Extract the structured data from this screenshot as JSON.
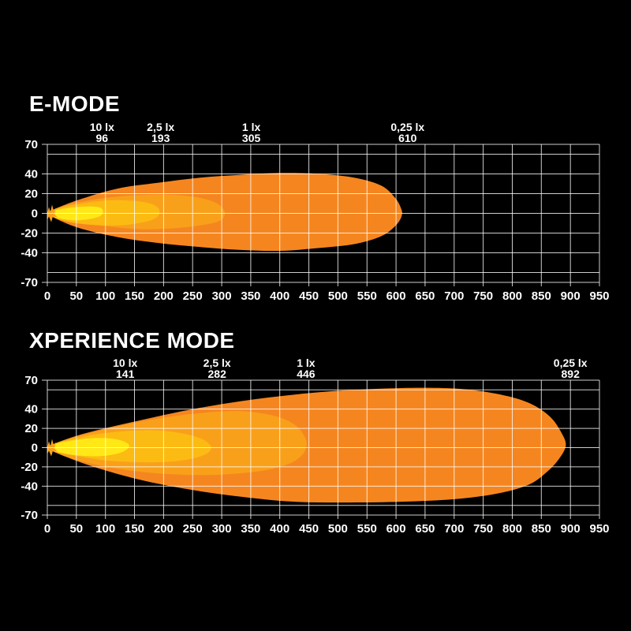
{
  "page": {
    "background": "#000000",
    "text_color": "#ffffff",
    "grid_color_rgba": "rgba(255,255,255,0.8)"
  },
  "chart_data": [
    {
      "type": "area",
      "title": "E-MODE",
      "xlabel": "",
      "ylabel": "",
      "xlim": [
        0,
        950
      ],
      "ylim": [
        -70,
        70
      ],
      "grid": true,
      "xticks": [
        0,
        50,
        100,
        150,
        200,
        250,
        300,
        350,
        400,
        450,
        500,
        550,
        600,
        650,
        700,
        750,
        800,
        850,
        900,
        950
      ],
      "ytick_labels": [
        70,
        40,
        20,
        0,
        -20,
        -40,
        -70
      ],
      "ygrid": [
        70,
        60,
        40,
        20,
        0,
        -20,
        -40,
        -60,
        -70
      ],
      "annotations": [
        {
          "lux": "10 lx",
          "distance": "96",
          "x": 94
        },
        {
          "lux": "2,5 lx",
          "distance": "193",
          "x": 195
        },
        {
          "lux": "1 lx",
          "distance": "305",
          "x": 351
        },
        {
          "lux": "0,25 lx",
          "distance": "610",
          "x": 620
        }
      ],
      "series": [
        {
          "name": "0,25 lx isolux contour",
          "reach": 610,
          "color": "#F5861F",
          "outline": [
            [
              0,
              1
            ],
            [
              50,
              13
            ],
            [
              120,
              25
            ],
            [
              190,
              31
            ],
            [
              260,
              36
            ],
            [
              330,
              39
            ],
            [
              400,
              41
            ],
            [
              470,
              40
            ],
            [
              530,
              36
            ],
            [
              575,
              28
            ],
            [
              598,
              16
            ],
            [
              608,
              6
            ],
            [
              610,
              -2
            ],
            [
              600,
              -12
            ],
            [
              575,
              -23
            ],
            [
              530,
              -31
            ],
            [
              470,
              -35
            ],
            [
              400,
              -38
            ],
            [
              330,
              -37
            ],
            [
              260,
              -34
            ],
            [
              190,
              -30
            ],
            [
              120,
              -24
            ],
            [
              50,
              -14
            ],
            [
              0,
              -1
            ]
          ]
        },
        {
          "name": "1 lx isolux contour",
          "reach": 305,
          "color": "#F9A01B",
          "outline": [
            [
              0,
              1
            ],
            [
              30,
              8
            ],
            [
              80,
              14
            ],
            [
              140,
              18
            ],
            [
              200,
              19
            ],
            [
              250,
              17
            ],
            [
              285,
              12
            ],
            [
              302,
              5
            ],
            [
              305,
              -2
            ],
            [
              295,
              -8
            ],
            [
              265,
              -12
            ],
            [
              220,
              -15
            ],
            [
              160,
              -16
            ],
            [
              100,
              -13
            ],
            [
              45,
              -9
            ],
            [
              0,
              -1
            ]
          ]
        },
        {
          "name": "2,5 lx isolux contour",
          "reach": 193,
          "color": "#FCBB12",
          "outline": [
            [
              0,
              1
            ],
            [
              25,
              6
            ],
            [
              60,
              10
            ],
            [
              100,
              13
            ],
            [
              140,
              13
            ],
            [
              170,
              11
            ],
            [
              188,
              7
            ],
            [
              193,
              1
            ],
            [
              186,
              -5
            ],
            [
              165,
              -9
            ],
            [
              130,
              -12
            ],
            [
              90,
              -12
            ],
            [
              50,
              -10
            ],
            [
              20,
              -6
            ],
            [
              0,
              -1
            ]
          ]
        },
        {
          "name": "10 lx isolux contour",
          "reach": 96,
          "color": "#FFE816",
          "outline": [
            [
              0,
              1
            ],
            [
              20,
              4
            ],
            [
              45,
              6
            ],
            [
              70,
              7
            ],
            [
              90,
              6
            ],
            [
              96,
              2
            ],
            [
              90,
              -3
            ],
            [
              70,
              -6
            ],
            [
              45,
              -7
            ],
            [
              20,
              -5
            ],
            [
              0,
              -1
            ]
          ]
        }
      ]
    },
    {
      "type": "area",
      "title": "XPERIENCE MODE",
      "xlabel": "",
      "ylabel": "",
      "xlim": [
        0,
        950
      ],
      "ylim": [
        -70,
        70
      ],
      "grid": true,
      "xticks": [
        0,
        50,
        100,
        150,
        200,
        250,
        300,
        350,
        400,
        450,
        500,
        550,
        600,
        650,
        700,
        750,
        800,
        850,
        900,
        950
      ],
      "ytick_labels": [
        70,
        40,
        20,
        0,
        -20,
        -40,
        -70
      ],
      "ygrid": [
        70,
        60,
        40,
        20,
        0,
        -20,
        -40,
        -60,
        -70
      ],
      "annotations": [
        {
          "lux": "10 lx",
          "distance": "141",
          "x": 134
        },
        {
          "lux": "2,5 lx",
          "distance": "282",
          "x": 292
        },
        {
          "lux": "1 lx",
          "distance": "446",
          "x": 445
        },
        {
          "lux": "0,25 lx",
          "distance": "892",
          "x": 900
        }
      ],
      "series": [
        {
          "name": "0,25 lx isolux contour",
          "reach": 892,
          "color": "#F5861F",
          "outline": [
            [
              0,
              1
            ],
            [
              60,
              14
            ],
            [
              150,
              27
            ],
            [
              260,
              41
            ],
            [
              380,
              52
            ],
            [
              500,
              59
            ],
            [
              620,
              62
            ],
            [
              710,
              61
            ],
            [
              780,
              55
            ],
            [
              830,
              46
            ],
            [
              865,
              32
            ],
            [
              885,
              15
            ],
            [
              892,
              2
            ],
            [
              880,
              -12
            ],
            [
              860,
              -25
            ],
            [
              830,
              -38
            ],
            [
              780,
              -47
            ],
            [
              710,
              -53
            ],
            [
              620,
              -56
            ],
            [
              520,
              -57
            ],
            [
              420,
              -56
            ],
            [
              320,
              -50
            ],
            [
              230,
              -42
            ],
            [
              150,
              -32
            ],
            [
              80,
              -20
            ],
            [
              30,
              -9
            ],
            [
              0,
              -1
            ]
          ]
        },
        {
          "name": "1 lx isolux contour",
          "reach": 446,
          "color": "#F9A01B",
          "outline": [
            [
              0,
              1
            ],
            [
              40,
              10
            ],
            [
              100,
              19
            ],
            [
              170,
              28
            ],
            [
              250,
              35
            ],
            [
              330,
              38
            ],
            [
              390,
              33
            ],
            [
              425,
              24
            ],
            [
              442,
              12
            ],
            [
              446,
              2
            ],
            [
              438,
              -8
            ],
            [
              415,
              -17
            ],
            [
              370,
              -24
            ],
            [
              300,
              -28
            ],
            [
              230,
              -28
            ],
            [
              160,
              -25
            ],
            [
              95,
              -19
            ],
            [
              40,
              -11
            ],
            [
              0,
              -1
            ]
          ]
        },
        {
          "name": "2,5 lx isolux contour",
          "reach": 282,
          "color": "#FCBB12",
          "outline": [
            [
              0,
              1
            ],
            [
              30,
              7
            ],
            [
              75,
              13
            ],
            [
              130,
              17
            ],
            [
              185,
              18
            ],
            [
              230,
              15
            ],
            [
              262,
              10
            ],
            [
              278,
              4
            ],
            [
              282,
              -1
            ],
            [
              272,
              -7
            ],
            [
              245,
              -12
            ],
            [
              200,
              -15
            ],
            [
              150,
              -15
            ],
            [
              95,
              -13
            ],
            [
              45,
              -8
            ],
            [
              0,
              -1
            ]
          ]
        },
        {
          "name": "10 lx isolux contour",
          "reach": 141,
          "color": "#FFE816",
          "outline": [
            [
              0,
              1
            ],
            [
              20,
              5
            ],
            [
              50,
              8
            ],
            [
              85,
              10
            ],
            [
              115,
              9
            ],
            [
              133,
              6
            ],
            [
              141,
              2
            ],
            [
              134,
              -3
            ],
            [
              115,
              -7
            ],
            [
              85,
              -9
            ],
            [
              50,
              -8
            ],
            [
              20,
              -5
            ],
            [
              0,
              -1
            ]
          ]
        }
      ]
    }
  ]
}
